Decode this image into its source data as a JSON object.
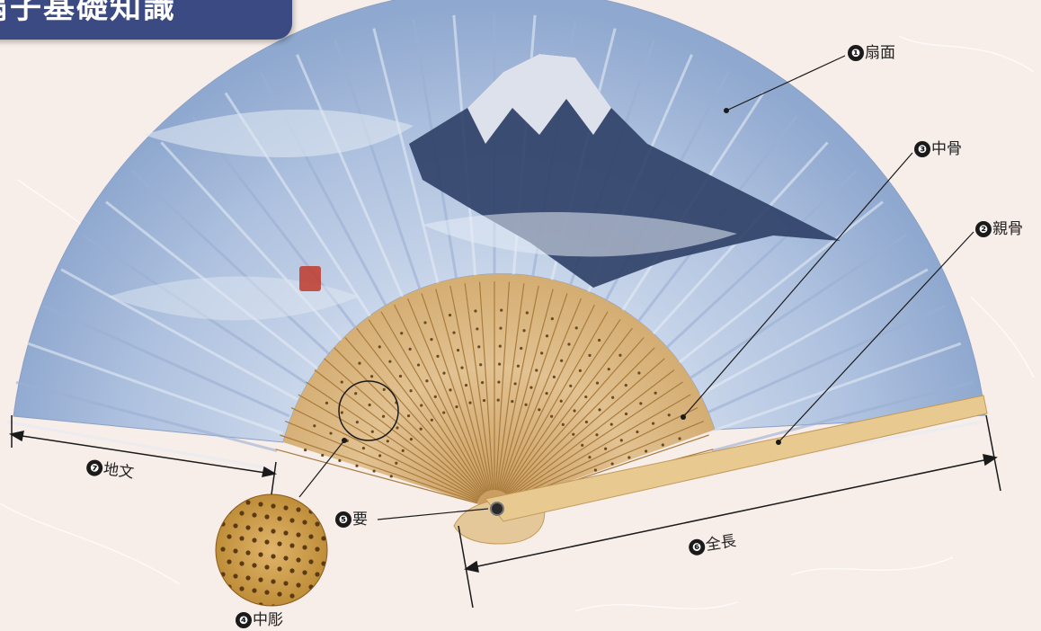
{
  "title": "扇子基礎知識",
  "parts": [
    {
      "number": "❶",
      "name": "扇面"
    },
    {
      "number": "❷",
      "name": "親骨"
    },
    {
      "number": "❸",
      "name": "中骨"
    },
    {
      "number": "❹",
      "name": "中彫"
    },
    {
      "number": "❺",
      "name": "要"
    },
    {
      "number": "❻",
      "name": "全長"
    },
    {
      "number": "❼",
      "name": "地文"
    }
  ],
  "colors": {
    "background": "#f7ede9",
    "banner": "#3b4a82",
    "leaf": "#a9bedc",
    "bamboo": "#d9b682",
    "mountain": "#2e3f66",
    "seal": "#c0392b"
  }
}
